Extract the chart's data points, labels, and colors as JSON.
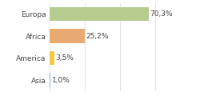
{
  "categories": [
    "Asia",
    "America",
    "Africa",
    "Europa"
  ],
  "values": [
    1.0,
    3.5,
    25.2,
    70.3
  ],
  "labels": [
    "1,0%",
    "3,5%",
    "25,2%",
    "70,3%"
  ],
  "bar_colors": [
    "#7bafd4",
    "#f5c842",
    "#e8aa72",
    "#b5cc8e"
  ],
  "xlim": [
    0,
    100
  ],
  "background_color": "#ffffff",
  "bar_height": 0.65,
  "label_fontsize": 6.5,
  "tick_fontsize": 6.5,
  "grid_color": "#dddddd",
  "grid_ticks": [
    0,
    25,
    50,
    75,
    100
  ]
}
